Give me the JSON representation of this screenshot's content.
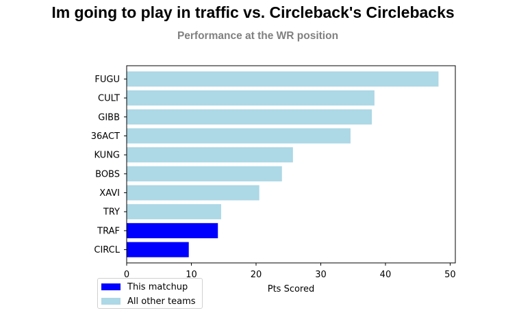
{
  "title": "Im going to play in traffic vs. Circleback's Circlebacks",
  "subtitle": "Performance at the WR position",
  "colors": {
    "highlight": "#0000ff",
    "other": "#add8e6"
  },
  "chart_data": {
    "type": "bar",
    "orientation": "horizontal",
    "title": "Im going to play in traffic vs. Circleback's Circlebacks",
    "subtitle": "Performance at the WR position",
    "xlabel": "Pts Scored",
    "ylabel": "",
    "xlim": [
      0,
      50.8
    ],
    "xticks": [
      0,
      10,
      20,
      30,
      40,
      50
    ],
    "categories": [
      "FUGU",
      "CULT",
      "GIBB",
      "36ACT",
      "KUNG",
      "BOBS",
      "XAVI",
      "TRY",
      "TRAF",
      "CIRCL"
    ],
    "values": [
      48.2,
      38.3,
      37.9,
      34.6,
      25.7,
      24.0,
      20.5,
      14.6,
      14.1,
      9.6
    ],
    "groups": [
      "All other teams",
      "All other teams",
      "All other teams",
      "All other teams",
      "All other teams",
      "All other teams",
      "All other teams",
      "All other teams",
      "This matchup",
      "This matchup"
    ],
    "grid": false,
    "legend": {
      "placement": "bottom-left",
      "entries": [
        {
          "label": "This matchup",
          "color": "#0000ff"
        },
        {
          "label": "All other teams",
          "color": "#add8e6"
        }
      ]
    }
  }
}
